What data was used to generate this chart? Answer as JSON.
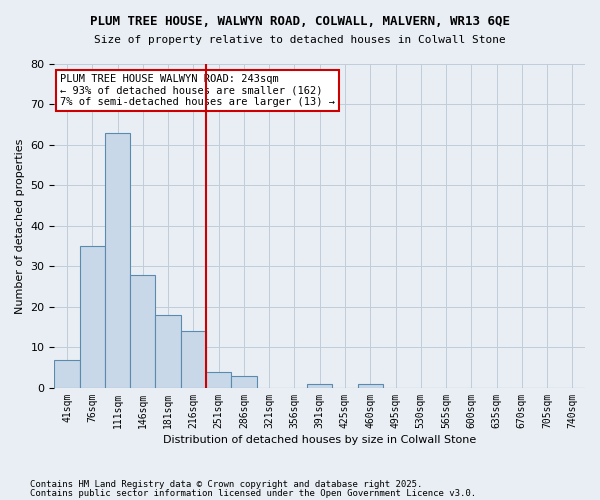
{
  "title_line1": "PLUM TREE HOUSE, WALWYN ROAD, COLWALL, MALVERN, WR13 6QE",
  "title_line2": "Size of property relative to detached houses in Colwall Stone",
  "xlabel": "Distribution of detached houses by size in Colwall Stone",
  "ylabel": "Number of detached properties",
  "bin_labels": [
    "41sqm",
    "76sqm",
    "111sqm",
    "146sqm",
    "181sqm",
    "216sqm",
    "251sqm",
    "286sqm",
    "321sqm",
    "356sqm",
    "391sqm",
    "425sqm",
    "460sqm",
    "495sqm",
    "530sqm",
    "565sqm",
    "600sqm",
    "635sqm",
    "670sqm",
    "705sqm",
    "740sqm"
  ],
  "bar_heights": [
    7,
    35,
    63,
    28,
    18,
    14,
    4,
    3,
    0,
    0,
    1,
    0,
    1,
    0,
    0,
    0,
    0,
    0,
    0,
    0,
    0
  ],
  "bar_color": "#c8d8e8",
  "bar_edge_color": "#5b8ab0",
  "vline_x_pos": 5.5,
  "vline_color": "#cc0000",
  "annotation_text": "PLUM TREE HOUSE WALWYN ROAD: 243sqm\n← 93% of detached houses are smaller (162)\n7% of semi-detached houses are larger (13) →",
  "annotation_box_color": "#ffffff",
  "annotation_box_edge_color": "#cc0000",
  "ylim": [
    0,
    80
  ],
  "yticks": [
    0,
    10,
    20,
    30,
    40,
    50,
    60,
    70,
    80
  ],
  "grid_color": "#c0ccd8",
  "background_color": "#e8eef4",
  "footnote_line1": "Contains HM Land Registry data © Crown copyright and database right 2025.",
  "footnote_line2": "Contains public sector information licensed under the Open Government Licence v3.0."
}
